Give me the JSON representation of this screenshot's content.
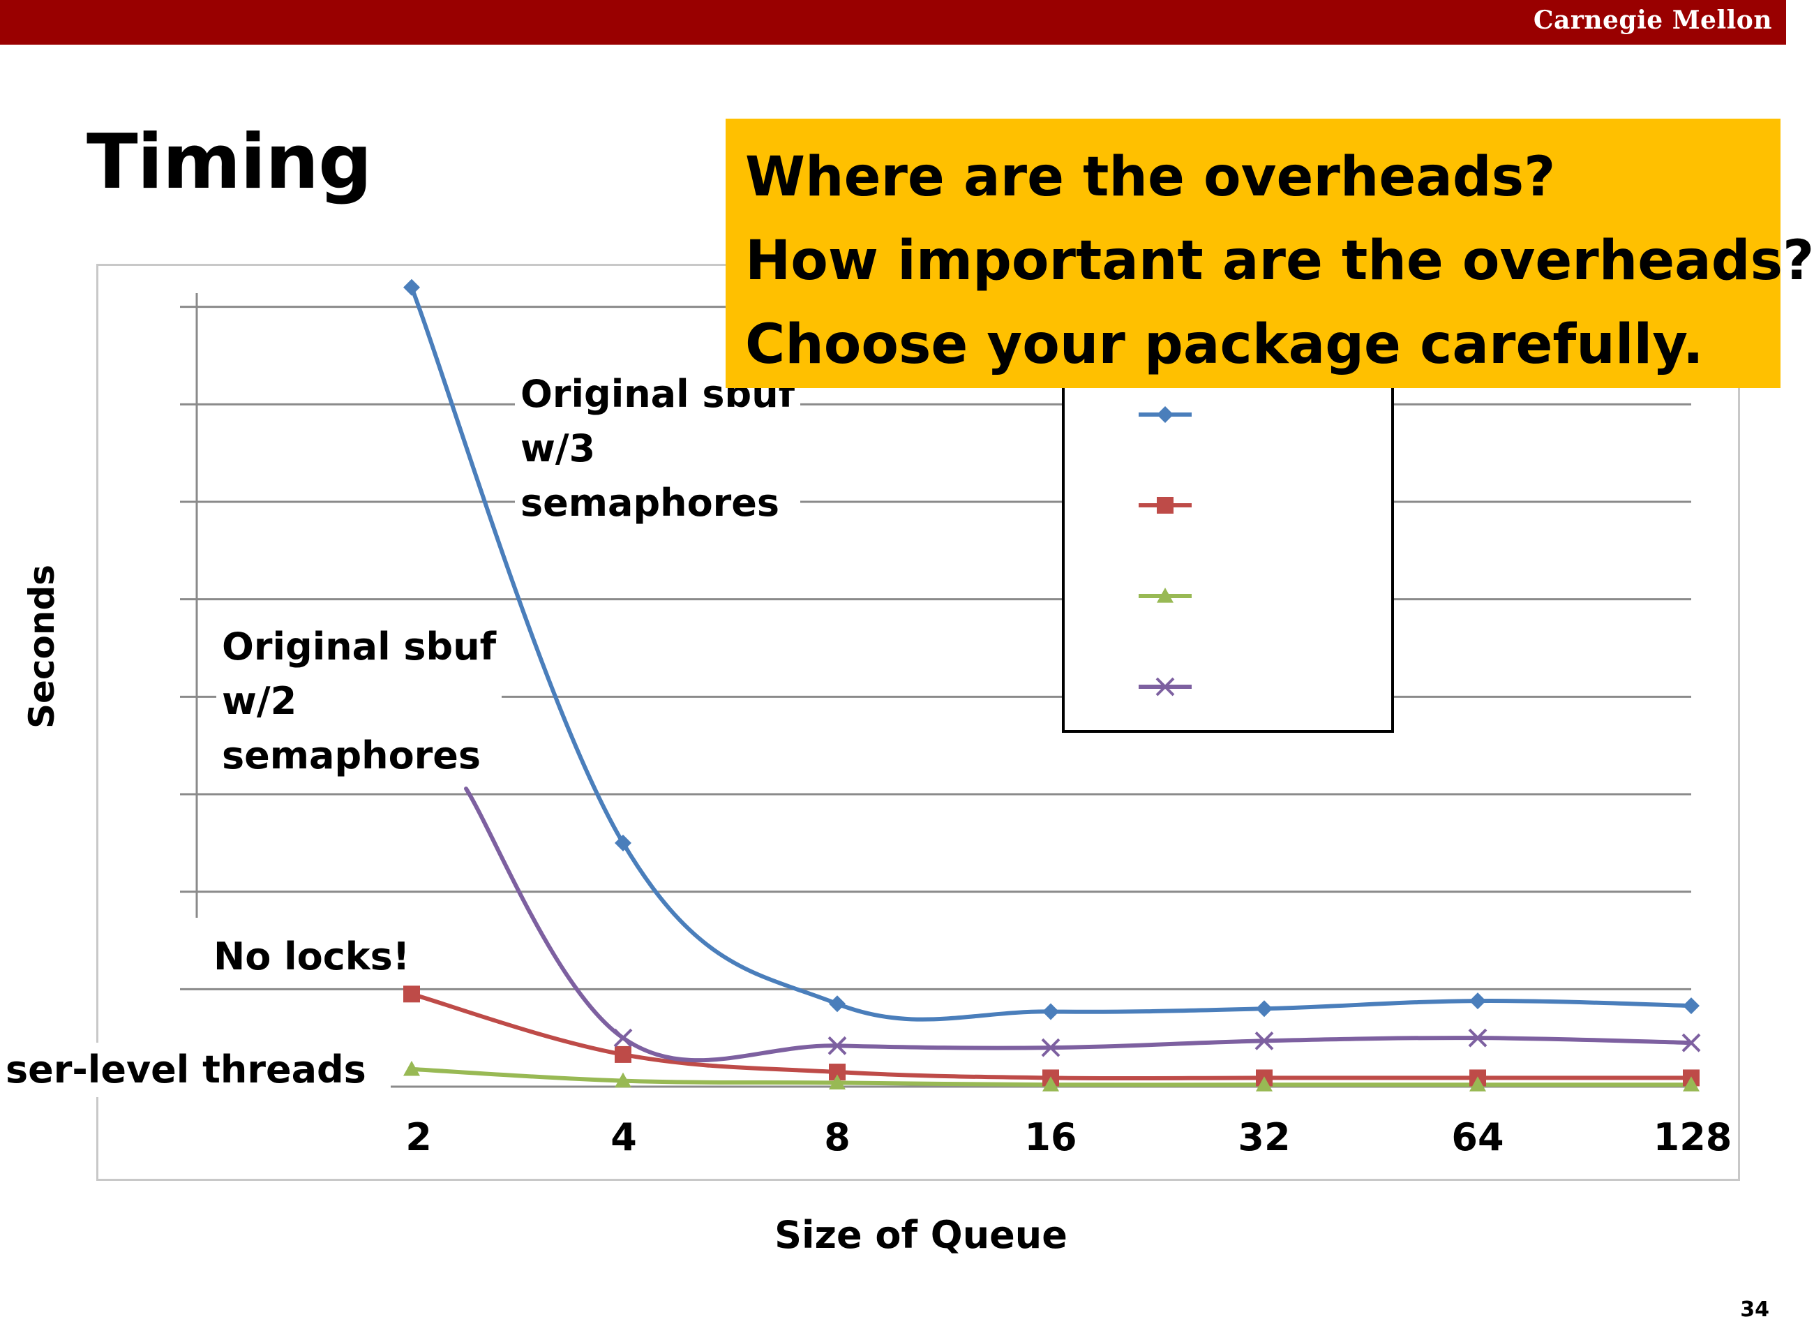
{
  "header": {
    "brand": "Carnegie Mellon",
    "accent": "#990000"
  },
  "slide": {
    "title": "Timing",
    "page_number": "34"
  },
  "callout": {
    "background": "#FFC000",
    "lines": [
      "Where are the overheads?",
      "How important are the overheads?",
      "Choose your package carefully."
    ]
  },
  "annotations": {
    "original_3": "Original sbuf\nw/3\nsemaphores",
    "original_2": "Original sbuf\nw/2\nsemaphores",
    "no_locks": "No locks!",
    "user_threads": "ser-level threads"
  },
  "chart_data": {
    "type": "line",
    "xlabel": "Size of Queue",
    "ylabel": "Seconds",
    "categories": [
      "2",
      "4",
      "8",
      "16",
      "32",
      "64",
      "128"
    ],
    "ylim": [
      0,
      9
    ],
    "grid": true,
    "legend_placement": "top-right",
    "series": [
      {
        "color": "#4A7EBB",
        "marker": "diamond",
        "values": [
          8.2,
          2.5,
          0.85,
          0.77,
          0.8,
          0.88,
          0.83
        ]
      },
      {
        "color": "#BE4B48",
        "marker": "square",
        "values": [
          0.95,
          0.33,
          0.15,
          0.09,
          0.09,
          0.09,
          0.09
        ]
      },
      {
        "color": "#98B954",
        "marker": "triangle",
        "values": [
          0.18,
          0.06,
          0.04,
          0.02,
          0.02,
          0.02,
          0.02
        ]
      },
      {
        "color": "#7D60A0",
        "marker": "x",
        "values": [
          null,
          0.5,
          0.42,
          0.4,
          0.47,
          0.5,
          0.45
        ]
      }
    ]
  }
}
